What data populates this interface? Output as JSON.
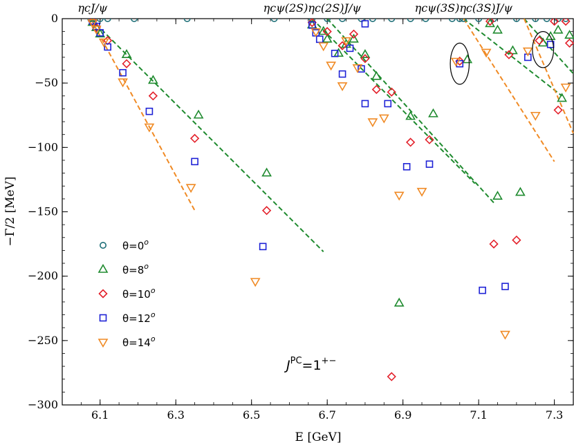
{
  "chart_data": {
    "type": "scatter",
    "xlabel": "E [GeV]",
    "ylabel": "−Γ/2 [MeV]",
    "xlim": [
      6.0,
      7.35
    ],
    "ylim": [
      -300,
      0
    ],
    "xticks": [
      6.1,
      6.3,
      6.5,
      6.7,
      6.9,
      7.1,
      7.3
    ],
    "yticks": [
      0,
      -50,
      -100,
      -150,
      -200,
      -250,
      -300
    ],
    "xtick_labels": [
      "6.1",
      "6.3",
      "6.5",
      "6.7",
      "6.9",
      "7.1",
      "7.3"
    ],
    "ytick_labels": [
      "0",
      "−50",
      "−100",
      "−150",
      "−200",
      "−250",
      "−300"
    ],
    "annotation": "J^PC=1^{+−}",
    "jpc": {
      "J": "J",
      "PC": "PC",
      "eq": "=1",
      "sup": "+−"
    },
    "threshold_labels": [
      {
        "text": "ηcJ/ψ",
        "x": 6.08
      },
      {
        "text": "ηcψ(2S)ηc(2S)J/ψ",
        "x": 6.66
      },
      {
        "text": "ηcψ(3S)ηc(3S)J/ψ",
        "x": 7.06
      }
    ],
    "series": [
      {
        "name": "θ=0°",
        "label_prefix": "θ=0",
        "label_sup": "o",
        "marker": "circle",
        "color": "#1f6f78",
        "x": [
          6.075,
          6.085,
          6.1,
          6.12,
          6.19,
          6.33,
          6.56,
          6.66,
          6.7,
          6.74,
          6.79,
          6.82,
          6.87,
          6.92,
          6.96,
          7.03,
          7.05,
          7.06,
          7.1,
          7.14,
          7.2,
          7.25,
          7.28,
          7.31,
          7.33
        ],
        "y": [
          0,
          0,
          0,
          0,
          0,
          0,
          0,
          0,
          0,
          0,
          0,
          0,
          0,
          0,
          0,
          0,
          0,
          0,
          0,
          0,
          0,
          0,
          0,
          0,
          0
        ]
      },
      {
        "name": "θ=8°",
        "label_prefix": "θ=8",
        "label_sup": "o",
        "marker": "triangle",
        "color": "#1e8a2e",
        "x": [
          6.08,
          6.09,
          6.1,
          6.17,
          6.24,
          6.36,
          6.54,
          6.66,
          6.69,
          6.7,
          6.73,
          6.75,
          6.77,
          6.8,
          6.83,
          6.92,
          6.98,
          7.07,
          7.13,
          7.15,
          7.19,
          7.21,
          7.27,
          7.29,
          7.31,
          7.32,
          7.34
        ],
        "y": [
          -3,
          -7,
          -12,
          -28,
          -48,
          -75,
          -120,
          -5,
          -10,
          -16,
          -27,
          -20,
          -16,
          -28,
          -45,
          -76,
          -74,
          -32,
          -4,
          -9,
          -25,
          -135,
          -19,
          -14,
          -9,
          -62,
          -13
        ],
        "markers_extra": [
          {
            "x": 7.15,
            "y": -138
          },
          {
            "x": 6.89,
            "y": -221
          }
        ]
      },
      {
        "name": "θ=10°",
        "label_prefix": "θ=10",
        "label_sup": "o",
        "marker": "diamond",
        "color": "#e3202a",
        "x": [
          6.08,
          6.09,
          6.12,
          6.17,
          6.24,
          6.35,
          6.54,
          6.66,
          6.7,
          6.74,
          6.77,
          6.8,
          6.83,
          6.87,
          6.92,
          6.97,
          7.05,
          7.13,
          7.18,
          7.2,
          7.26,
          7.3,
          7.31,
          7.33,
          7.34,
          6.87,
          7.14
        ],
        "y": [
          -2,
          -7,
          -17,
          -35,
          -60,
          -93,
          -149,
          -3,
          -10,
          -21,
          -12,
          -31,
          -55,
          -57,
          -96,
          -94,
          -33,
          -2,
          -28,
          -172,
          -17,
          -2,
          -71,
          -2,
          -19,
          -278,
          -175
        ]
      },
      {
        "name": "θ=12°",
        "label_prefix": "θ=12",
        "label_sup": "o",
        "marker": "square",
        "color": "#1e22d6",
        "x": [
          6.08,
          6.09,
          6.1,
          6.12,
          6.16,
          6.23,
          6.35,
          6.53,
          6.66,
          6.67,
          6.68,
          6.72,
          6.74,
          6.76,
          6.79,
          6.8,
          6.86,
          6.91,
          6.97,
          7.05,
          7.11,
          7.17,
          7.23,
          7.29,
          6.8
        ],
        "y": [
          -2,
          -6,
          -11,
          -22,
          -42,
          -72,
          -111,
          -177,
          -5,
          -11,
          -16,
          -27,
          -43,
          -23,
          -39,
          -66,
          -66,
          -115,
          -113,
          -35,
          -211,
          -208,
          -30,
          -20,
          -4
        ]
      },
      {
        "name": "θ=14°",
        "label_prefix": "θ=14",
        "label_sup": "o",
        "marker": "invtriangle",
        "color": "#f08a24",
        "x": [
          6.08,
          6.09,
          6.11,
          6.16,
          6.23,
          6.34,
          6.51,
          6.67,
          6.69,
          6.71,
          6.74,
          6.75,
          6.78,
          6.82,
          6.85,
          6.89,
          6.95,
          7.04,
          7.12,
          7.17,
          7.23,
          7.25,
          7.33
        ],
        "y": [
          -3,
          -8,
          -18,
          -49,
          -84,
          -131,
          -204,
          -10,
          -21,
          -36,
          -52,
          -17,
          -38,
          -80,
          -77,
          -137,
          -134,
          -33,
          -26,
          -245,
          -25,
          -75,
          -53
        ]
      }
    ],
    "dashed_lines": [
      {
        "color": "#1e8a2e",
        "x": [
          6.075,
          6.69
        ],
        "y": [
          0,
          -181
        ]
      },
      {
        "color": "#f08a24",
        "x": [
          6.075,
          6.35
        ],
        "y": [
          0,
          -149
        ]
      },
      {
        "color": "#1e8a2e",
        "x": [
          6.66,
          7.09
        ],
        "y": [
          0,
          -128
        ]
      },
      {
        "color": "#1e8a2e",
        "x": [
          6.7,
          7.14
        ],
        "y": [
          0,
          -143
        ]
      },
      {
        "color": "#1e8a2e",
        "x": [
          7.06,
          7.32
        ],
        "y": [
          0,
          -60
        ]
      },
      {
        "color": "#f08a24",
        "x": [
          7.06,
          7.3
        ],
        "y": [
          0,
          -111
        ]
      },
      {
        "color": "#1e8a2e",
        "x": [
          7.22,
          7.36
        ],
        "y": [
          0,
          -46
        ]
      },
      {
        "color": "#f08a24",
        "x": [
          7.22,
          7.35
        ],
        "y": [
          0,
          -89
        ]
      }
    ],
    "ellipses": [
      {
        "cx": 7.05,
        "cy": -35,
        "rx": 0.025,
        "ry": 16
      },
      {
        "cx": 7.27,
        "cy": -24,
        "rx": 0.028,
        "ry": 14
      }
    ],
    "legend_position": "left-middle"
  }
}
